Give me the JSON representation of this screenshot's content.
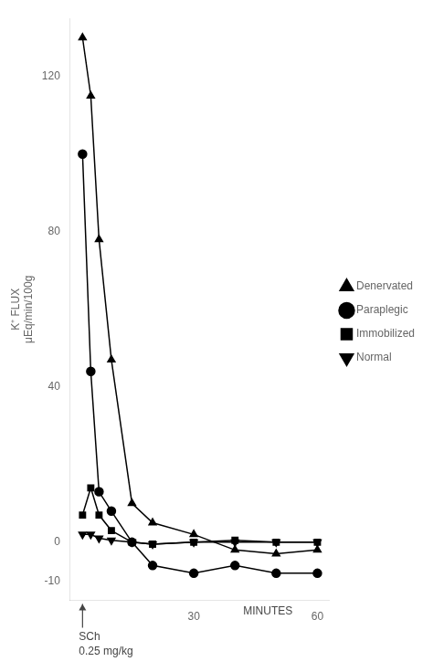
{
  "chart_data": {
    "type": "line",
    "ylabel": "K⁺ FLUX\nμEq/min/100g",
    "xlim": [
      0,
      63
    ],
    "xticks": [
      30,
      60
    ],
    "ylim": [
      -15,
      135
    ],
    "yticks": [
      -10,
      0,
      40,
      80,
      120
    ],
    "grid": false,
    "legend": "right",
    "series": [
      {
        "name": "Denervated",
        "marker": "triangle",
        "color": "#000000",
        "x": [
          3,
          5,
          7,
          10,
          15,
          20,
          30,
          40,
          50,
          60
        ],
        "values": [
          130,
          115,
          78,
          47,
          10,
          5,
          2,
          -2,
          -3,
          -2
        ]
      },
      {
        "name": "Paraplegic",
        "marker": "circle",
        "color": "#000000",
        "x": [
          3,
          5,
          7,
          10,
          15,
          20,
          30,
          40,
          50,
          60
        ],
        "values": [
          100,
          44,
          13,
          8,
          0,
          -6,
          -8,
          -6,
          -8,
          -8
        ]
      },
      {
        "name": "Immobilized",
        "marker": "square",
        "color": "#000000",
        "x": [
          3,
          5,
          7,
          10,
          15,
          20,
          30,
          40,
          50,
          60
        ],
        "values": [
          7,
          14,
          7,
          3,
          0,
          -0.5,
          0,
          0.5,
          0,
          0
        ]
      },
      {
        "name": "Normal",
        "marker": "triangle-down",
        "color": "#000000",
        "x": [
          3,
          5,
          7,
          10,
          15,
          20,
          30,
          40,
          50,
          60
        ],
        "values": [
          2,
          2,
          1,
          0.5,
          0,
          -0.5,
          0,
          0,
          0,
          0
        ]
      }
    ],
    "annotations": [
      {
        "text": "SCh",
        "x": 3,
        "arrow": true
      },
      {
        "text": "0.25 mg/kg",
        "x": 3
      },
      {
        "text": "MINUTES",
        "x": 42
      }
    ]
  }
}
